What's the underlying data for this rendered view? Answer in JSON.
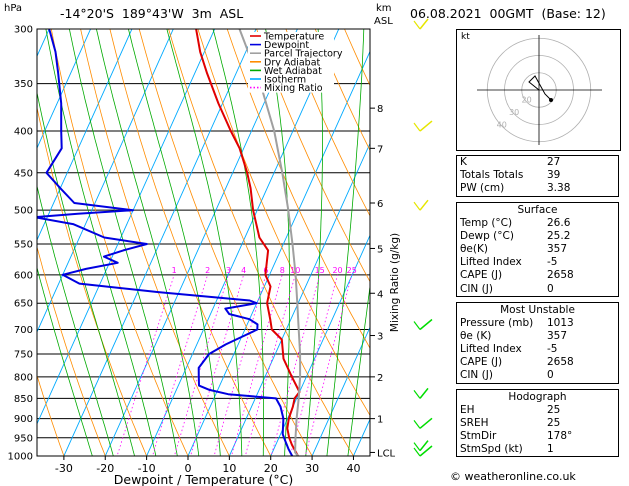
{
  "header": {
    "hpa_label": "hPa",
    "location": "-14°20'S  189°43'W  3m  ASL",
    "km_label": "km",
    "asl_label": "ASL",
    "datetime": "06.08.2021  00GMT  (Base: 12)"
  },
  "colors": {
    "temperature": "#e00000",
    "dewpoint": "#0000e0",
    "parcel": "#a0a0a0",
    "dry_adiabat": "#ff8c00",
    "wet_adiabat": "#00aa00",
    "isotherm": "#00aaff",
    "mixing_ratio": "#ff00ff",
    "wind": "#00dd00",
    "wind_upper": "#e6e600"
  },
  "chart_data": {
    "type": "line",
    "xlabel": "Dewpoint / Temperature (°C)",
    "ylabel": "Mixing Ratio (g/kg)",
    "xlim": [
      -35,
      40
    ],
    "ylim": [
      1000,
      300
    ],
    "x_ticks": [
      "-30",
      "-20",
      "-10",
      "0",
      "10",
      "20",
      "30",
      "40"
    ],
    "pressure_ticks": [
      "300",
      "350",
      "400",
      "450",
      "500",
      "550",
      "600",
      "650",
      "700",
      "750",
      "800",
      "850",
      "900",
      "950",
      "1000"
    ],
    "km_ticks": [
      {
        "label": "8",
        "p": 375
      },
      {
        "label": "7",
        "p": 420
      },
      {
        "label": "6",
        "p": 490
      },
      {
        "label": "5",
        "p": 557
      },
      {
        "label": "4",
        "p": 632
      },
      {
        "label": "3",
        "p": 712
      },
      {
        "label": "2",
        "p": 800
      },
      {
        "label": "1",
        "p": 900
      },
      {
        "label": "LCL",
        "p": 990
      }
    ],
    "mixing_ratio_labels": [
      "1",
      "2",
      "3",
      "4",
      "6",
      "8",
      "10",
      "15",
      "20",
      "25"
    ],
    "legend": [
      "Temperature",
      "Dewpoint",
      "Parcel Trajectory",
      "Dry Adiabat",
      "Wet Adiabat",
      "Isotherm",
      "Mixing Ratio"
    ],
    "legend_position": "top-left",
    "series": [
      {
        "name": "Temperature",
        "points": [
          [
            1000,
            26.6
          ],
          [
            970,
            24
          ],
          [
            950,
            22.5
          ],
          [
            925,
            21
          ],
          [
            900,
            20.3
          ],
          [
            870,
            20
          ],
          [
            850,
            19.5
          ],
          [
            835,
            20
          ],
          [
            800,
            16.5
          ],
          [
            760,
            12.5
          ],
          [
            720,
            10
          ],
          [
            700,
            6.5
          ],
          [
            680,
            5
          ],
          [
            650,
            2.5
          ],
          [
            620,
            1.5
          ],
          [
            600,
            -1
          ],
          [
            560,
            -3
          ],
          [
            540,
            -6.5
          ],
          [
            500,
            -11
          ],
          [
            470,
            -14
          ],
          [
            450,
            -16.5
          ],
          [
            420,
            -21
          ],
          [
            400,
            -25
          ],
          [
            370,
            -31
          ],
          [
            340,
            -37
          ],
          [
            320,
            -41
          ],
          [
            300,
            -44.5
          ]
        ]
      },
      {
        "name": "Dewpoint",
        "points": [
          [
            1000,
            25.2
          ],
          [
            980,
            23.5
          ],
          [
            960,
            22
          ],
          [
            940,
            20.5
          ],
          [
            900,
            19
          ],
          [
            870,
            17
          ],
          [
            850,
            15
          ],
          [
            840,
            3
          ],
          [
            830,
            -2
          ],
          [
            820,
            -5
          ],
          [
            800,
            -6
          ],
          [
            780,
            -7
          ],
          [
            750,
            -6
          ],
          [
            730,
            -3
          ],
          [
            715,
            0
          ],
          [
            700,
            3
          ],
          [
            690,
            2.5
          ],
          [
            680,
            0
          ],
          [
            670,
            -5.5
          ],
          [
            660,
            -7
          ],
          [
            650,
            0
          ],
          [
            645,
            -2
          ],
          [
            630,
            -25
          ],
          [
            615,
            -45
          ],
          [
            600,
            -50
          ],
          [
            590,
            -45
          ],
          [
            580,
            -38
          ],
          [
            570,
            -42
          ],
          [
            560,
            -38
          ],
          [
            550,
            -33
          ],
          [
            540,
            -44
          ],
          [
            520,
            -53
          ],
          [
            510,
            -63
          ],
          [
            505,
            -53
          ],
          [
            500,
            -40
          ],
          [
            490,
            -55
          ],
          [
            470,
            -60
          ],
          [
            450,
            -65
          ],
          [
            420,
            -64
          ],
          [
            400,
            -66
          ],
          [
            370,
            -69
          ],
          [
            340,
            -73
          ],
          [
            320,
            -76
          ],
          [
            300,
            -80
          ]
        ]
      },
      {
        "name": "Parcel Trajectory",
        "points": [
          [
            1000,
            26.6
          ],
          [
            990,
            25.5
          ],
          [
            950,
            24
          ],
          [
            900,
            22.2
          ],
          [
            850,
            20.5
          ],
          [
            800,
            18.5
          ],
          [
            750,
            16
          ],
          [
            700,
            13
          ],
          [
            650,
            9.8
          ],
          [
            600,
            6.3
          ],
          [
            550,
            2.2
          ],
          [
            500,
            -2.5
          ],
          [
            450,
            -8
          ],
          [
            400,
            -14.5
          ],
          [
            350,
            -23
          ],
          [
            300,
            -34
          ]
        ]
      }
    ]
  },
  "hodograph": {
    "label": "kt",
    "ring_labels": [
      "20",
      "30",
      "40"
    ]
  },
  "indices": {
    "basic": [
      {
        "k": "K",
        "v": "27"
      },
      {
        "k": "Totals Totals",
        "v": "39"
      },
      {
        "k": "PW (cm)",
        "v": "3.38"
      }
    ],
    "surface": {
      "title": "Surface",
      "rows": [
        {
          "k": "Temp (°C)",
          "v": "26.6"
        },
        {
          "k": "Dewp (°C)",
          "v": "25.2"
        },
        {
          "k": "θe(K)",
          "v": "357"
        },
        {
          "k": "Lifted Index",
          "v": "-5"
        },
        {
          "k": "CAPE (J)",
          "v": "2658"
        },
        {
          "k": "CIN (J)",
          "v": "0"
        }
      ]
    },
    "most_unstable": {
      "title": "Most Unstable",
      "rows": [
        {
          "k": "Pressure (mb)",
          "v": "1013"
        },
        {
          "k": "θe (K)",
          "v": "357"
        },
        {
          "k": "Lifted Index",
          "v": "-5"
        },
        {
          "k": "CAPE (J)",
          "v": "2658"
        },
        {
          "k": "CIN (J)",
          "v": "0"
        }
      ]
    },
    "hodograph": {
      "title": "Hodograph",
      "rows": [
        {
          "k": "EH",
          "v": "25"
        },
        {
          "k": "SREH",
          "v": "25"
        },
        {
          "k": "StmDir",
          "v": "178°"
        },
        {
          "k": "StmSpd (kt)",
          "v": "1"
        }
      ]
    }
  },
  "footer": {
    "copyright": "© weatheronline.co.uk"
  }
}
